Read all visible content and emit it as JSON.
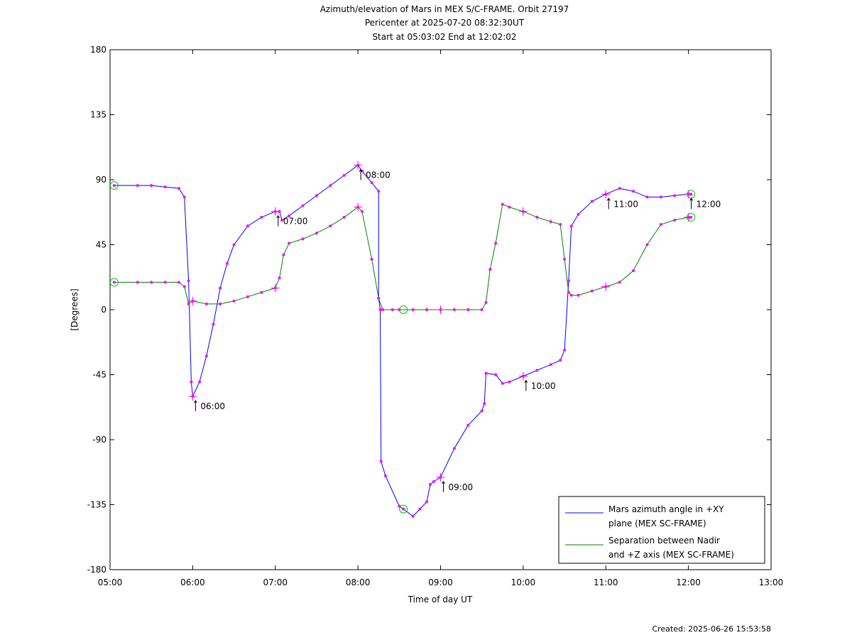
{
  "chart_data": {
    "type": "line",
    "title_lines": [
      "Azimuth/elevation of Mars in MEX S/C-FRAME.  Orbit 27197",
      "Pericenter at 2025-07-20 08:32:30UT",
      "Start at 05:03:02 End at 12:02:02"
    ],
    "xlabel": "Time of day UT",
    "ylabel": "[Degrees]",
    "xlim": [
      5,
      13
    ],
    "ylim": [
      -180,
      180
    ],
    "x_ticks": [
      {
        "value": 5,
        "label": "05:00"
      },
      {
        "value": 6,
        "label": "06:00"
      },
      {
        "value": 7,
        "label": "07:00"
      },
      {
        "value": 8,
        "label": "08:00"
      },
      {
        "value": 9,
        "label": "09:00"
      },
      {
        "value": 10,
        "label": "10:00"
      },
      {
        "value": 11,
        "label": "11:00"
      },
      {
        "value": 12,
        "label": "12:00"
      },
      {
        "value": 13,
        "label": "13:00"
      }
    ],
    "y_ticks": [
      {
        "value": 180,
        "label": "180"
      },
      {
        "value": 135,
        "label": "135"
      },
      {
        "value": 90,
        "label": "90"
      },
      {
        "value": 45,
        "label": "45"
      },
      {
        "value": 0,
        "label": "0"
      },
      {
        "value": -45,
        "label": "-45"
      },
      {
        "value": -90,
        "label": "-90"
      },
      {
        "value": -135,
        "label": "-135"
      },
      {
        "value": -180,
        "label": "-180"
      }
    ],
    "legend_position": "bottom-right",
    "series": [
      {
        "name_lines": [
          "Mars azimuth angle in +XY",
          "plane (MEX SC-FRAME)"
        ],
        "color": "#0000ff",
        "points": [
          [
            5.05,
            86
          ],
          [
            5.333,
            86
          ],
          [
            5.5,
            86
          ],
          [
            5.667,
            85
          ],
          [
            5.833,
            84
          ],
          [
            5.9,
            78
          ],
          [
            5.95,
            20
          ],
          [
            5.983,
            -50
          ],
          [
            6.0,
            -60
          ],
          [
            6.083,
            -50
          ],
          [
            6.167,
            -32
          ],
          [
            6.25,
            -10
          ],
          [
            6.333,
            15
          ],
          [
            6.417,
            32
          ],
          [
            6.5,
            45
          ],
          [
            6.667,
            58
          ],
          [
            6.833,
            64
          ],
          [
            7.0,
            68
          ],
          [
            7.05,
            68
          ],
          [
            7.08,
            62
          ],
          [
            7.167,
            65
          ],
          [
            7.333,
            72
          ],
          [
            7.5,
            79
          ],
          [
            7.667,
            86
          ],
          [
            7.833,
            93
          ],
          [
            8.0,
            100
          ],
          [
            8.05,
            96
          ],
          [
            8.167,
            88
          ],
          [
            8.25,
            82
          ],
          [
            8.25,
            8
          ],
          [
            8.27,
            0
          ],
          [
            8.28,
            -105
          ],
          [
            8.333,
            -115
          ],
          [
            8.5,
            -136
          ],
          [
            8.55,
            -138
          ],
          [
            8.667,
            -143
          ],
          [
            8.75,
            -138
          ],
          [
            8.833,
            -133
          ],
          [
            8.875,
            -121
          ],
          [
            8.917,
            -119
          ],
          [
            9.0,
            -116
          ],
          [
            9.167,
            -96
          ],
          [
            9.333,
            -80
          ],
          [
            9.5,
            -70
          ],
          [
            9.53,
            -65
          ],
          [
            9.55,
            -44
          ],
          [
            9.667,
            -45
          ],
          [
            9.75,
            -51
          ],
          [
            9.833,
            -50
          ],
          [
            10.0,
            -46
          ],
          [
            10.167,
            -42
          ],
          [
            10.333,
            -38
          ],
          [
            10.45,
            -35
          ],
          [
            10.5,
            -28
          ],
          [
            10.55,
            20
          ],
          [
            10.583,
            58
          ],
          [
            10.667,
            66
          ],
          [
            10.833,
            75
          ],
          [
            11.0,
            80
          ],
          [
            11.167,
            84
          ],
          [
            11.333,
            82
          ],
          [
            11.5,
            78
          ],
          [
            11.667,
            78
          ],
          [
            11.833,
            79
          ],
          [
            12.0,
            80
          ],
          [
            12.03,
            80
          ]
        ]
      },
      {
        "name_lines": [
          "Separation between Nadir",
          "and +Z axis (MEX SC-FRAME)"
        ],
        "color": "#008000",
        "points": [
          [
            5.05,
            19
          ],
          [
            5.333,
            19
          ],
          [
            5.5,
            19
          ],
          [
            5.667,
            19
          ],
          [
            5.833,
            19
          ],
          [
            5.9,
            16
          ],
          [
            5.95,
            4
          ],
          [
            6.0,
            6
          ],
          [
            6.167,
            4
          ],
          [
            6.333,
            4
          ],
          [
            6.5,
            6
          ],
          [
            6.667,
            9
          ],
          [
            6.833,
            12
          ],
          [
            7.0,
            15
          ],
          [
            7.05,
            22
          ],
          [
            7.1,
            38
          ],
          [
            7.167,
            46
          ],
          [
            7.333,
            49
          ],
          [
            7.5,
            53
          ],
          [
            7.667,
            58
          ],
          [
            7.833,
            64
          ],
          [
            8.0,
            71
          ],
          [
            8.05,
            68
          ],
          [
            8.167,
            35
          ],
          [
            8.25,
            8
          ],
          [
            8.3,
            0
          ],
          [
            8.417,
            0
          ],
          [
            8.5,
            0
          ],
          [
            8.667,
            0
          ],
          [
            8.833,
            0
          ],
          [
            9.0,
            0
          ],
          [
            9.167,
            0
          ],
          [
            9.333,
            0
          ],
          [
            9.5,
            0
          ],
          [
            9.55,
            5
          ],
          [
            9.6,
            28
          ],
          [
            9.667,
            46
          ],
          [
            9.75,
            73
          ],
          [
            9.833,
            71
          ],
          [
            10.0,
            68
          ],
          [
            10.167,
            64
          ],
          [
            10.333,
            61
          ],
          [
            10.45,
            59
          ],
          [
            10.5,
            35
          ],
          [
            10.55,
            12
          ],
          [
            10.583,
            10
          ],
          [
            10.667,
            10
          ],
          [
            10.833,
            13
          ],
          [
            11.0,
            16
          ],
          [
            11.167,
            19
          ],
          [
            11.333,
            27
          ],
          [
            11.5,
            45
          ],
          [
            11.667,
            59
          ],
          [
            11.833,
            62
          ],
          [
            12.0,
            64
          ],
          [
            12.03,
            64
          ]
        ]
      }
    ],
    "marker_color": "#ff00ff",
    "circle_color": "#00cc00",
    "hour_annotations": [
      {
        "x": 6.0,
        "y": -60,
        "label": "06:00"
      },
      {
        "x": 7.0,
        "y": 68,
        "label": "07:00"
      },
      {
        "x": 8.0,
        "y": 100,
        "label": "08:00"
      },
      {
        "x": 9.0,
        "y": -116,
        "label": "09:00"
      },
      {
        "x": 10.0,
        "y": -46,
        "label": "10:00"
      },
      {
        "x": 11.0,
        "y": 80,
        "label": "11:00"
      },
      {
        "x": 12.0,
        "y": 80,
        "label": "12:00"
      }
    ],
    "plus_markers": [
      [
        6.0,
        -60
      ],
      [
        7.0,
        68
      ],
      [
        8.0,
        100
      ],
      [
        9.0,
        -116
      ],
      [
        10.0,
        -46
      ],
      [
        11.0,
        80
      ],
      [
        12.0,
        80
      ],
      [
        6.0,
        6
      ],
      [
        7.0,
        15
      ],
      [
        8.0,
        71
      ],
      [
        9.0,
        0
      ],
      [
        10.0,
        68
      ],
      [
        11.0,
        16
      ],
      [
        12.0,
        64
      ]
    ],
    "circle_markers": [
      [
        5.05,
        86
      ],
      [
        5.05,
        19
      ],
      [
        8.55,
        -138
      ],
      [
        8.55,
        0
      ],
      [
        12.03,
        80
      ],
      [
        12.03,
        64
      ]
    ],
    "created": "Created: 2025-06-26 15:53:58"
  }
}
